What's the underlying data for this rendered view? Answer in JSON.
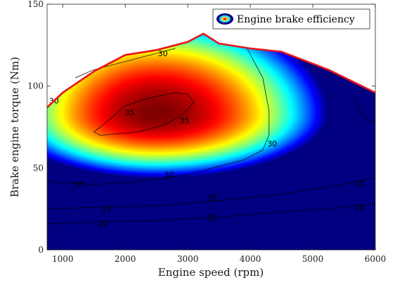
{
  "chart_data": {
    "type": "heatmap",
    "title": "",
    "xlabel": "Engine speed (rpm)",
    "ylabel": "Brake engine torque (Nm)",
    "xlim": [
      750,
      6000
    ],
    "ylim": [
      0,
      150
    ],
    "xticks": [
      1000,
      2000,
      3000,
      4000,
      5000,
      6000
    ],
    "yticks": [
      0,
      50,
      100,
      150
    ],
    "xtick_labels": [
      "1000",
      "2000",
      "3000",
      "4000",
      "5000",
      "6000"
    ],
    "ytick_labels": [
      "0",
      "50",
      "100",
      "150"
    ],
    "colormap": "jet",
    "grid": false,
    "legend": {
      "label": "Engine brake efficiency",
      "placement": "top-right"
    },
    "max_torque_curve": {
      "color": "#e8141b",
      "points": [
        [
          750,
          87
        ],
        [
          1000,
          96
        ],
        [
          1500,
          109
        ],
        [
          2000,
          119
        ],
        [
          2500,
          122
        ],
        [
          3000,
          127
        ],
        [
          3250,
          132
        ],
        [
          3500,
          126
        ],
        [
          4000,
          123
        ],
        [
          4500,
          121
        ],
        [
          5250,
          110
        ],
        [
          6000,
          96
        ]
      ]
    },
    "efficiency_field": {
      "peak": {
        "x": 2500,
        "y": 83,
        "value": 37.5
      }
    },
    "contours": [
      {
        "level": 35,
        "points": [
          [
            1600,
            70
          ],
          [
            1500,
            72
          ],
          [
            1700,
            78
          ],
          [
            2000,
            88
          ],
          [
            2400,
            93
          ],
          [
            2800,
            96
          ],
          [
            3000,
            95
          ],
          [
            3100,
            90
          ],
          [
            2900,
            82
          ],
          [
            2600,
            76
          ],
          [
            2200,
            72
          ],
          [
            1600,
            70
          ]
        ]
      },
      {
        "level": 30,
        "points": [
          [
            1200,
            105
          ],
          [
            1500,
            110
          ],
          [
            2000,
            115
          ],
          [
            2400,
            119
          ],
          [
            2800,
            123
          ]
        ]
      },
      {
        "level": 30,
        "points": [
          [
            750,
            42
          ],
          [
            1000,
            41
          ],
          [
            1500,
            40
          ],
          [
            2000,
            41
          ],
          [
            2500,
            43
          ],
          [
            3000,
            46
          ],
          [
            3500,
            51
          ],
          [
            3900,
            55
          ],
          [
            4200,
            61
          ],
          [
            4300,
            70
          ],
          [
            4300,
            85
          ],
          [
            4200,
            105
          ],
          [
            3950,
            123
          ]
        ]
      },
      {
        "level": 30,
        "points": [
          [
            5650,
            95
          ],
          [
            5700,
            88
          ],
          [
            5850,
            80
          ],
          [
            6000,
            77
          ]
        ]
      },
      {
        "level": 25,
        "points": [
          [
            750,
            25
          ],
          [
            1500,
            26
          ],
          [
            2500,
            27
          ],
          [
            3500,
            30
          ],
          [
            4500,
            34
          ],
          [
            5500,
            40
          ],
          [
            6000,
            44
          ]
        ]
      },
      {
        "level": 20,
        "points": [
          [
            750,
            16
          ],
          [
            1500,
            17
          ],
          [
            2500,
            18
          ],
          [
            3500,
            20
          ],
          [
            4500,
            23
          ],
          [
            5500,
            26
          ],
          [
            6000,
            28
          ]
        ]
      }
    ],
    "contour_labels": [
      {
        "text": "35",
        "x": 2070,
        "y": 84
      },
      {
        "text": "35",
        "x": 2950,
        "y": 79
      },
      {
        "text": "30",
        "x": 860,
        "y": 91
      },
      {
        "text": "30",
        "x": 2600,
        "y": 120
      },
      {
        "text": "30",
        "x": 1250,
        "y": 40
      },
      {
        "text": "30",
        "x": 2700,
        "y": 46
      },
      {
        "text": "30",
        "x": 4350,
        "y": 65
      },
      {
        "text": "25",
        "x": 1700,
        "y": 25
      },
      {
        "text": "25",
        "x": 3400,
        "y": 32
      },
      {
        "text": "25",
        "x": 5750,
        "y": 41
      },
      {
        "text": "20",
        "x": 1640,
        "y": 16
      },
      {
        "text": "20",
        "x": 3400,
        "y": 20
      },
      {
        "text": "20",
        "x": 5750,
        "y": 26
      }
    ]
  }
}
